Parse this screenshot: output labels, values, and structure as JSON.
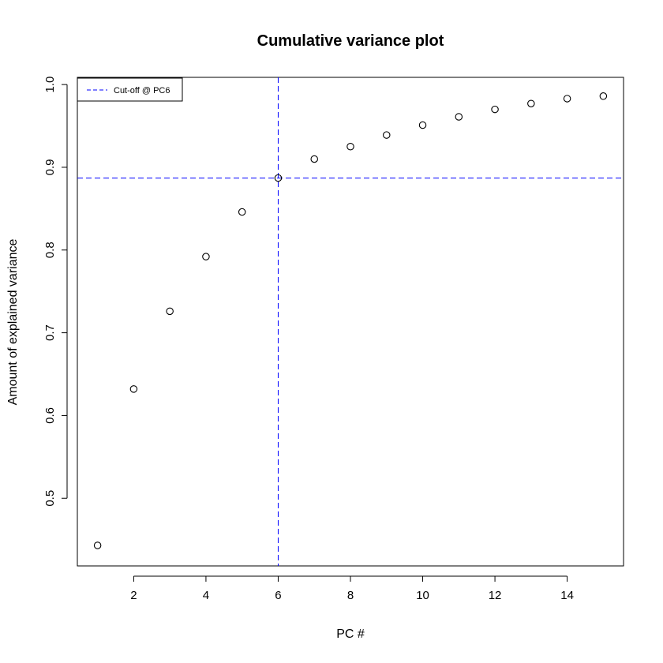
{
  "chart_data": {
    "type": "scatter",
    "title": "Cumulative variance plot",
    "xlabel": "PC #",
    "ylabel": "Amount of explained variance",
    "xlim": [
      0.44,
      15.56
    ],
    "ylim": [
      0.4182,
      1.0087
    ],
    "xticks": [
      2,
      4,
      6,
      8,
      10,
      12,
      14
    ],
    "yticks": [
      0.5,
      0.6,
      0.7,
      0.8,
      0.9,
      1.0
    ],
    "ytick_labels": [
      "0.5",
      "0.6",
      "0.7",
      "0.8",
      "0.9",
      "1.0"
    ],
    "grid": false,
    "marker": "open-circle",
    "x": [
      1,
      2,
      3,
      4,
      5,
      6,
      7,
      8,
      9,
      10,
      11,
      12,
      13,
      14,
      15
    ],
    "y": [
      0.443,
      0.632,
      0.726,
      0.792,
      0.846,
      0.887,
      0.91,
      0.925,
      0.939,
      0.951,
      0.961,
      0.97,
      0.977,
      0.983,
      0.986
    ],
    "reference_lines": {
      "vertical_x": 6,
      "horizontal_y": 0.887,
      "color": "#0000ff",
      "style": "dashed"
    },
    "legend": {
      "position": "top-left",
      "entries": [
        {
          "label": "Cut-off @ PC6",
          "color": "#0000ff",
          "style": "dashed"
        }
      ]
    }
  }
}
